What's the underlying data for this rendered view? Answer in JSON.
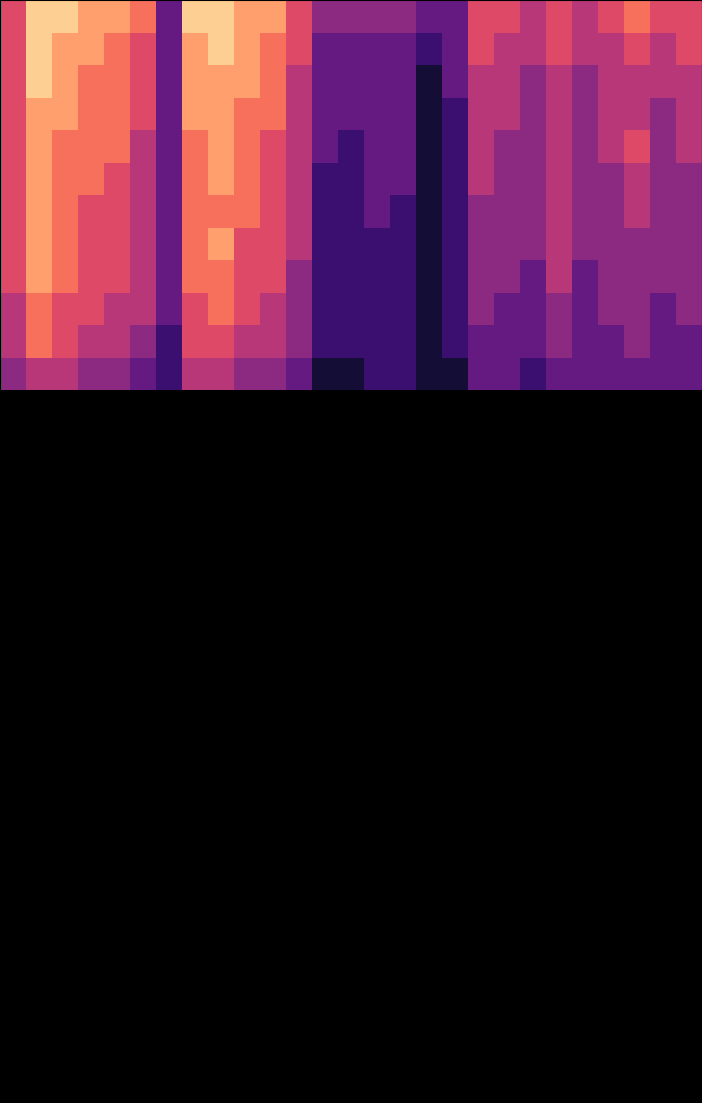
{
  "chart_data": {
    "type": "heatmap",
    "color": "magma",
    "tick_labels": false,
    "xlim": [
      0,
      27
    ],
    "ylim": [
      33.9,
      0
    ],
    "color_range": [
      0,
      1
    ],
    "cells": [
      [
        0.6,
        0.9,
        0.9,
        0.8,
        0.8,
        0.7,
        0.3,
        0.9,
        0.9,
        0.8,
        0.8,
        0.6,
        0.4,
        0.4,
        0.4,
        0.4,
        0.3,
        0.3,
        0.6,
        0.6,
        0.5,
        0.6,
        0.5,
        0.6,
        0.7,
        0.6,
        0.6
      ],
      [
        0.6,
        0.9,
        0.8,
        0.8,
        0.7,
        0.6,
        0.3,
        0.8,
        0.9,
        0.8,
        0.7,
        0.6,
        0.3,
        0.3,
        0.3,
        0.3,
        0.2,
        0.3,
        0.6,
        0.5,
        0.5,
        0.6,
        0.5,
        0.5,
        0.6,
        0.5,
        0.6
      ],
      [
        0.6,
        0.9,
        0.8,
        0.7,
        0.7,
        0.6,
        0.3,
        0.8,
        0.8,
        0.8,
        0.7,
        0.5,
        0.3,
        0.3,
        0.3,
        0.3,
        0.1,
        0.3,
        0.5,
        0.5,
        0.4,
        0.5,
        0.4,
        0.5,
        0.5,
        0.5,
        0.5
      ],
      [
        0.6,
        0.8,
        0.8,
        0.7,
        0.7,
        0.6,
        0.3,
        0.8,
        0.8,
        0.7,
        0.7,
        0.5,
        0.3,
        0.3,
        0.3,
        0.3,
        0.1,
        0.2,
        0.5,
        0.5,
        0.4,
        0.5,
        0.4,
        0.5,
        0.5,
        0.4,
        0.5
      ],
      [
        0.6,
        0.8,
        0.7,
        0.7,
        0.7,
        0.5,
        0.3,
        0.7,
        0.8,
        0.7,
        0.6,
        0.5,
        0.3,
        0.2,
        0.3,
        0.3,
        0.1,
        0.2,
        0.5,
        0.4,
        0.4,
        0.5,
        0.4,
        0.5,
        0.6,
        0.4,
        0.5
      ],
      [
        0.6,
        0.8,
        0.7,
        0.7,
        0.6,
        0.5,
        0.3,
        0.7,
        0.8,
        0.7,
        0.6,
        0.5,
        0.2,
        0.2,
        0.3,
        0.3,
        0.1,
        0.2,
        0.5,
        0.4,
        0.4,
        0.5,
        0.4,
        0.4,
        0.5,
        0.4,
        0.4
      ],
      [
        0.6,
        0.8,
        0.7,
        0.6,
        0.6,
        0.5,
        0.3,
        0.7,
        0.7,
        0.7,
        0.6,
        0.5,
        0.2,
        0.2,
        0.3,
        0.2,
        0.1,
        0.2,
        0.4,
        0.4,
        0.4,
        0.5,
        0.4,
        0.4,
        0.5,
        0.4,
        0.4
      ],
      [
        0.6,
        0.8,
        0.7,
        0.6,
        0.6,
        0.5,
        0.3,
        0.7,
        0.8,
        0.6,
        0.6,
        0.5,
        0.2,
        0.2,
        0.2,
        0.2,
        0.1,
        0.2,
        0.4,
        0.4,
        0.4,
        0.5,
        0.4,
        0.4,
        0.4,
        0.4,
        0.4
      ],
      [
        0.6,
        0.8,
        0.7,
        0.6,
        0.6,
        0.5,
        0.3,
        0.7,
        0.7,
        0.6,
        0.6,
        0.4,
        0.2,
        0.2,
        0.2,
        0.2,
        0.1,
        0.2,
        0.4,
        0.4,
        0.3,
        0.5,
        0.3,
        0.4,
        0.4,
        0.4,
        0.4
      ],
      [
        0.5,
        0.7,
        0.6,
        0.6,
        0.5,
        0.5,
        0.3,
        0.6,
        0.7,
        0.6,
        0.5,
        0.4,
        0.2,
        0.2,
        0.2,
        0.2,
        0.1,
        0.2,
        0.4,
        0.3,
        0.3,
        0.4,
        0.3,
        0.4,
        0.4,
        0.3,
        0.4
      ],
      [
        0.5,
        0.7,
        0.6,
        0.5,
        0.5,
        0.4,
        0.2,
        0.6,
        0.6,
        0.5,
        0.5,
        0.4,
        0.2,
        0.2,
        0.2,
        0.2,
        0.1,
        0.2,
        0.3,
        0.3,
        0.3,
        0.4,
        0.3,
        0.3,
        0.4,
        0.3,
        0.3
      ],
      [
        0.4,
        0.5,
        0.5,
        0.4,
        0.4,
        0.3,
        0.2,
        0.5,
        0.5,
        0.4,
        0.4,
        0.3,
        0.1,
        0.1,
        0.2,
        0.2,
        0.1,
        0.1,
        0.3,
        0.3,
        0.2,
        0.3,
        0.3,
        0.3,
        0.3,
        0.3,
        0.3
      ]
    ]
  }
}
